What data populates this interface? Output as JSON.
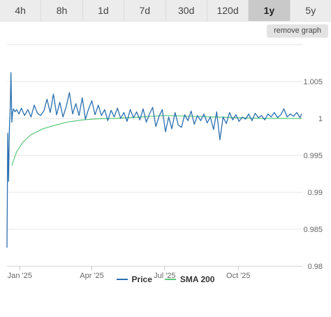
{
  "timeframes": [
    {
      "label": "4h",
      "active": false
    },
    {
      "label": "8h",
      "active": false
    },
    {
      "label": "1d",
      "active": false
    },
    {
      "label": "7d",
      "active": false
    },
    {
      "label": "30d",
      "active": false
    },
    {
      "label": "120d",
      "active": false
    },
    {
      "label": "1y",
      "active": true
    },
    {
      "label": "5y",
      "active": false
    }
  ],
  "remove_graph_label": "remove graph",
  "colors": {
    "price": "#2a6fb0",
    "sma": "#5cc97a",
    "grid": "#e6e6e6",
    "tab_active": "#c9c9c9"
  },
  "chart_data": {
    "type": "line",
    "title": "",
    "xlabel": "",
    "ylabel": "",
    "x_ticks": [
      "Jan '25",
      "Apr '25",
      "Jul '25",
      "Oct '25"
    ],
    "x_tick_dates": [
      "2025-01-01",
      "2025-04-01",
      "2025-07-01",
      "2025-10-01"
    ],
    "x_range": [
      "2024-12-16",
      "2025-12-20"
    ],
    "y_ticks": [
      0.98,
      0.985,
      0.99,
      0.995,
      1,
      1.005
    ],
    "y_tick_labels": [
      "0.98",
      "0.985",
      "0.99",
      "0.995",
      "1",
      "1.005"
    ],
    "ylim": [
      0.98,
      1.01
    ],
    "grid": true,
    "legend_position": "bottom-center",
    "series": [
      {
        "name": "Price",
        "x": [
          "2024-12-16",
          "2024-12-17",
          "2024-12-18",
          "2024-12-19",
          "2024-12-20",
          "2024-12-21",
          "2024-12-22",
          "2024-12-23",
          "2024-12-24",
          "2024-12-26",
          "2024-12-28",
          "2024-12-31",
          "2025-01-03",
          "2025-01-07",
          "2025-01-11",
          "2025-01-15",
          "2025-01-19",
          "2025-01-23",
          "2025-01-27",
          "2025-01-31",
          "2025-02-04",
          "2025-02-08",
          "2025-02-12",
          "2025-02-16",
          "2025-02-20",
          "2025-02-24",
          "2025-02-28",
          "2025-03-04",
          "2025-03-08",
          "2025-03-12",
          "2025-03-16",
          "2025-03-20",
          "2025-03-24",
          "2025-03-28",
          "2025-04-01",
          "2025-04-05",
          "2025-04-09",
          "2025-04-13",
          "2025-04-17",
          "2025-04-21",
          "2025-04-25",
          "2025-04-29",
          "2025-05-03",
          "2025-05-07",
          "2025-05-11",
          "2025-05-15",
          "2025-05-19",
          "2025-05-23",
          "2025-05-27",
          "2025-05-31",
          "2025-06-04",
          "2025-06-08",
          "2025-06-12",
          "2025-06-16",
          "2025-06-20",
          "2025-06-24",
          "2025-06-28",
          "2025-07-02",
          "2025-07-06",
          "2025-07-10",
          "2025-07-14",
          "2025-07-18",
          "2025-07-22",
          "2025-07-26",
          "2025-07-30",
          "2025-08-03",
          "2025-08-07",
          "2025-08-11",
          "2025-08-15",
          "2025-08-19",
          "2025-08-23",
          "2025-08-27",
          "2025-08-31",
          "2025-09-04",
          "2025-09-08",
          "2025-09-12",
          "2025-09-16",
          "2025-09-20",
          "2025-09-24",
          "2025-09-28",
          "2025-10-02",
          "2025-10-06",
          "2025-10-10",
          "2025-10-14",
          "2025-10-18",
          "2025-10-22",
          "2025-10-26",
          "2025-10-30",
          "2025-11-03",
          "2025-11-07",
          "2025-11-11",
          "2025-11-15",
          "2025-11-19",
          "2025-11-23",
          "2025-11-27",
          "2025-12-01",
          "2025-12-05",
          "2025-12-09",
          "2025-12-13",
          "2025-12-17",
          "2025-12-19"
        ],
        "values": [
          0.9825,
          0.998,
          0.9915,
          0.9985,
          1.0012,
          1.0062,
          0.9995,
          1.0007,
          1.0013,
          1.0009,
          1.0012,
          1.0006,
          1.0014,
          1.0004,
          1.0012,
          1.0002,
          1.0018,
          1.0007,
          1.0004,
          1.001,
          1.0026,
          1.0008,
          1.0033,
          1.0005,
          1.0022,
          1.0002,
          1.0016,
          1.0035,
          1.0006,
          1.002,
          1.0004,
          1.0028,
          0.9999,
          1.0013,
          1.0024,
          1.0005,
          1.0018,
          1.0004,
          1.0012,
          0.9997,
          1.0011,
          1.0002,
          1.0014,
          1.0,
          1.0008,
          0.9996,
          1.0012,
          1.0001,
          1.0009,
          0.9998,
          1.0013,
          0.9995,
          1.0006,
          1.0015,
          0.9989,
          1.0003,
          1.0012,
          0.9982,
          1.0002,
          0.9986,
          1.0008,
          0.9991,
          0.9988,
          1.0005,
          0.9997,
          1.001,
          0.9992,
          1.0004,
          0.9997,
          1.0006,
          0.9994,
          1.0002,
          0.9985,
          1.0009,
          0.9971,
          1.0002,
          0.9993,
          1.0008,
          0.9998,
          1.0005,
          0.9996,
          1.0002,
          0.9999,
          1.0006,
          0.9997,
          1.0007,
          1.0001,
          1.0004,
          0.9998,
          1.0006,
          1.0002,
          1.0008,
          1.0001,
          1.0005,
          1.0013,
          1.0002,
          1.0006,
          1.0003,
          1.0008,
          1.0001,
          1.0006
        ]
      },
      {
        "name": "SMA 200",
        "x": [
          "2024-12-22",
          "2024-12-28",
          "2025-01-05",
          "2025-01-15",
          "2025-01-30",
          "2025-02-15",
          "2025-03-01",
          "2025-03-20",
          "2025-04-10",
          "2025-05-01",
          "2025-06-01",
          "2025-07-01",
          "2025-08-01",
          "2025-09-01",
          "2025-10-01",
          "2025-11-01",
          "2025-12-01",
          "2025-12-19"
        ],
        "values": [
          0.9936,
          0.9955,
          0.9968,
          0.9978,
          0.9986,
          0.9991,
          0.9995,
          0.9998,
          0.99995,
          1.0,
          1.0002,
          1.0004,
          1.0003,
          1.0002,
          1.0001,
          1.0,
          1.0,
          1.0
        ]
      }
    ]
  }
}
